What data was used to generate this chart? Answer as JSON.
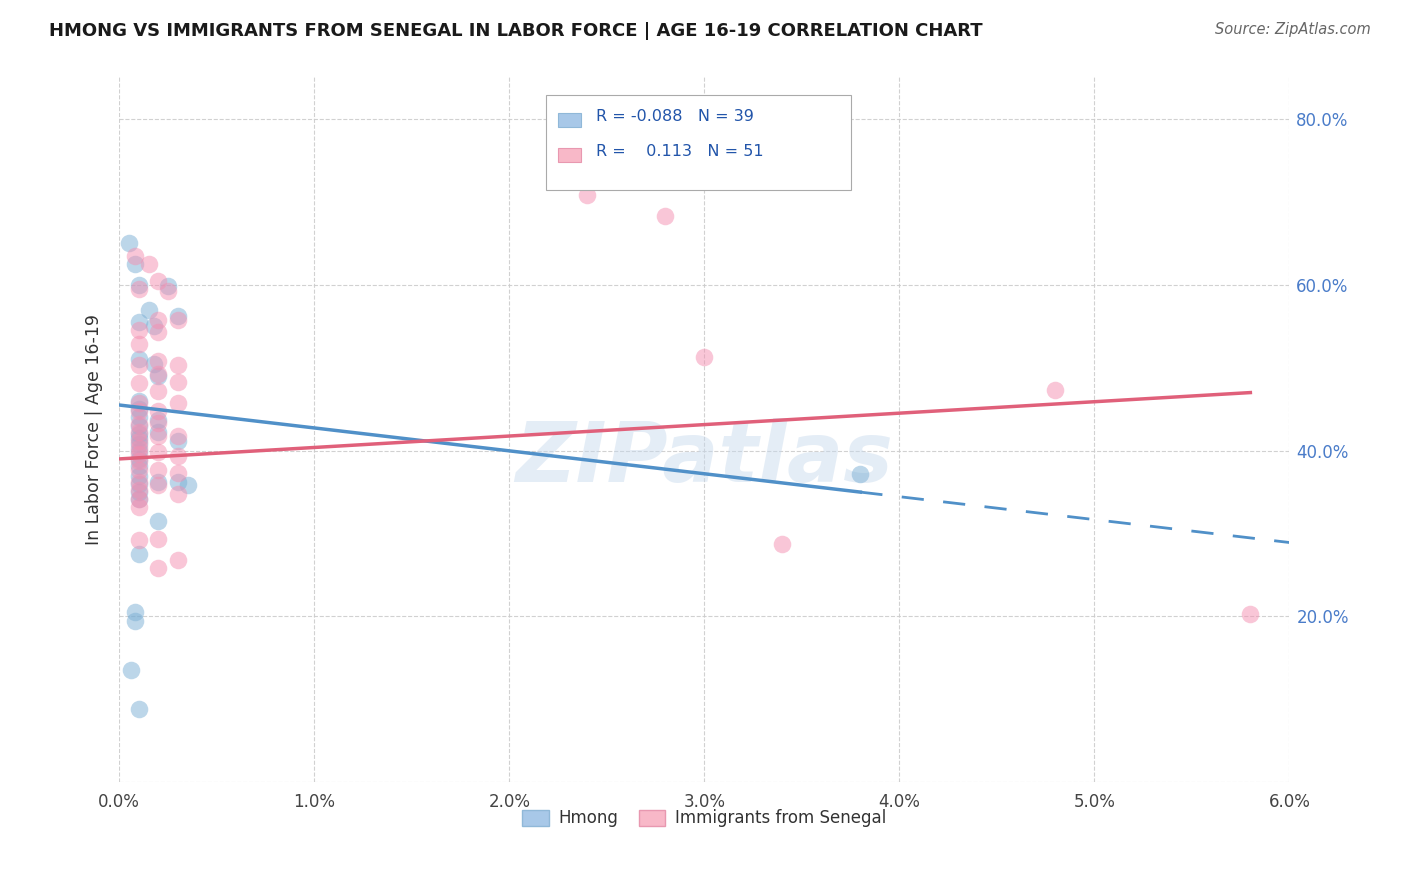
{
  "title": "HMONG VS IMMIGRANTS FROM SENEGAL IN LABOR FORCE | AGE 16-19 CORRELATION CHART",
  "source": "Source: ZipAtlas.com",
  "ylabel": "In Labor Force | Age 16-19",
  "xlim": [
    0.0,
    0.06
  ],
  "ylim": [
    0.0,
    0.85
  ],
  "xticks": [
    0.0,
    0.01,
    0.02,
    0.03,
    0.04,
    0.05,
    0.06
  ],
  "yticks": [
    0.0,
    0.2,
    0.4,
    0.6,
    0.8
  ],
  "xticklabels": [
    "0.0%",
    "1.0%",
    "2.0%",
    "3.0%",
    "4.0%",
    "5.0%",
    "6.0%"
  ],
  "yticklabels_right": [
    "",
    "20.0%",
    "40.0%",
    "60.0%",
    "80.0%"
  ],
  "hmong_color": "#7bafd4",
  "senegal_color": "#f48fb1",
  "hmong_line_color": "#5090c8",
  "senegal_line_color": "#e0607a",
  "watermark": "ZIPatlas",
  "background_color": "#ffffff",
  "grid_color": "#cccccc",
  "hmong_line_x0": 0.0,
  "hmong_line_y0": 0.455,
  "hmong_line_x1": 0.038,
  "hmong_line_y1": 0.35,
  "senegal_line_x0": 0.0,
  "senegal_line_y0": 0.39,
  "senegal_line_x1": 0.058,
  "senegal_line_y1": 0.47,
  "hmong_scatter": [
    [
      0.0005,
      0.65
    ],
    [
      0.0008,
      0.625
    ],
    [
      0.001,
      0.6
    ],
    [
      0.001,
      0.555
    ],
    [
      0.001,
      0.51
    ],
    [
      0.001,
      0.46
    ],
    [
      0.001,
      0.45
    ],
    [
      0.001,
      0.44
    ],
    [
      0.001,
      0.43
    ],
    [
      0.001,
      0.42
    ],
    [
      0.001,
      0.415
    ],
    [
      0.001,
      0.408
    ],
    [
      0.001,
      0.4
    ],
    [
      0.001,
      0.39
    ],
    [
      0.001,
      0.382
    ],
    [
      0.001,
      0.37
    ],
    [
      0.001,
      0.36
    ],
    [
      0.001,
      0.35
    ],
    [
      0.001,
      0.342
    ],
    [
      0.001,
      0.275
    ],
    [
      0.0008,
      0.205
    ],
    [
      0.0008,
      0.195
    ],
    [
      0.0015,
      0.57
    ],
    [
      0.0018,
      0.55
    ],
    [
      0.0018,
      0.505
    ],
    [
      0.002,
      0.49
    ],
    [
      0.002,
      0.437
    ],
    [
      0.002,
      0.422
    ],
    [
      0.002,
      0.362
    ],
    [
      0.002,
      0.315
    ],
    [
      0.0025,
      0.598
    ],
    [
      0.003,
      0.562
    ],
    [
      0.003,
      0.412
    ],
    [
      0.003,
      0.362
    ],
    [
      0.0035,
      0.358
    ],
    [
      0.038,
      0.372
    ],
    [
      0.0006,
      0.135
    ],
    [
      0.001,
      0.088
    ]
  ],
  "senegal_scatter": [
    [
      0.0008,
      0.635
    ],
    [
      0.001,
      0.595
    ],
    [
      0.001,
      0.545
    ],
    [
      0.001,
      0.528
    ],
    [
      0.001,
      0.503
    ],
    [
      0.001,
      0.482
    ],
    [
      0.001,
      0.458
    ],
    [
      0.001,
      0.448
    ],
    [
      0.001,
      0.432
    ],
    [
      0.001,
      0.422
    ],
    [
      0.001,
      0.412
    ],
    [
      0.001,
      0.403
    ],
    [
      0.001,
      0.396
    ],
    [
      0.001,
      0.387
    ],
    [
      0.001,
      0.377
    ],
    [
      0.001,
      0.362
    ],
    [
      0.001,
      0.352
    ],
    [
      0.001,
      0.342
    ],
    [
      0.001,
      0.332
    ],
    [
      0.001,
      0.292
    ],
    [
      0.0015,
      0.625
    ],
    [
      0.002,
      0.605
    ],
    [
      0.002,
      0.558
    ],
    [
      0.002,
      0.543
    ],
    [
      0.002,
      0.508
    ],
    [
      0.002,
      0.493
    ],
    [
      0.002,
      0.472
    ],
    [
      0.002,
      0.448
    ],
    [
      0.002,
      0.433
    ],
    [
      0.002,
      0.418
    ],
    [
      0.002,
      0.398
    ],
    [
      0.002,
      0.377
    ],
    [
      0.002,
      0.358
    ],
    [
      0.002,
      0.293
    ],
    [
      0.0025,
      0.593
    ],
    [
      0.003,
      0.558
    ],
    [
      0.003,
      0.503
    ],
    [
      0.003,
      0.483
    ],
    [
      0.003,
      0.458
    ],
    [
      0.003,
      0.418
    ],
    [
      0.003,
      0.393
    ],
    [
      0.003,
      0.373
    ],
    [
      0.003,
      0.348
    ],
    [
      0.003,
      0.268
    ],
    [
      0.024,
      0.708
    ],
    [
      0.028,
      0.683
    ],
    [
      0.03,
      0.513
    ],
    [
      0.034,
      0.288
    ],
    [
      0.048,
      0.473
    ],
    [
      0.058,
      0.203
    ],
    [
      0.002,
      0.258
    ]
  ]
}
